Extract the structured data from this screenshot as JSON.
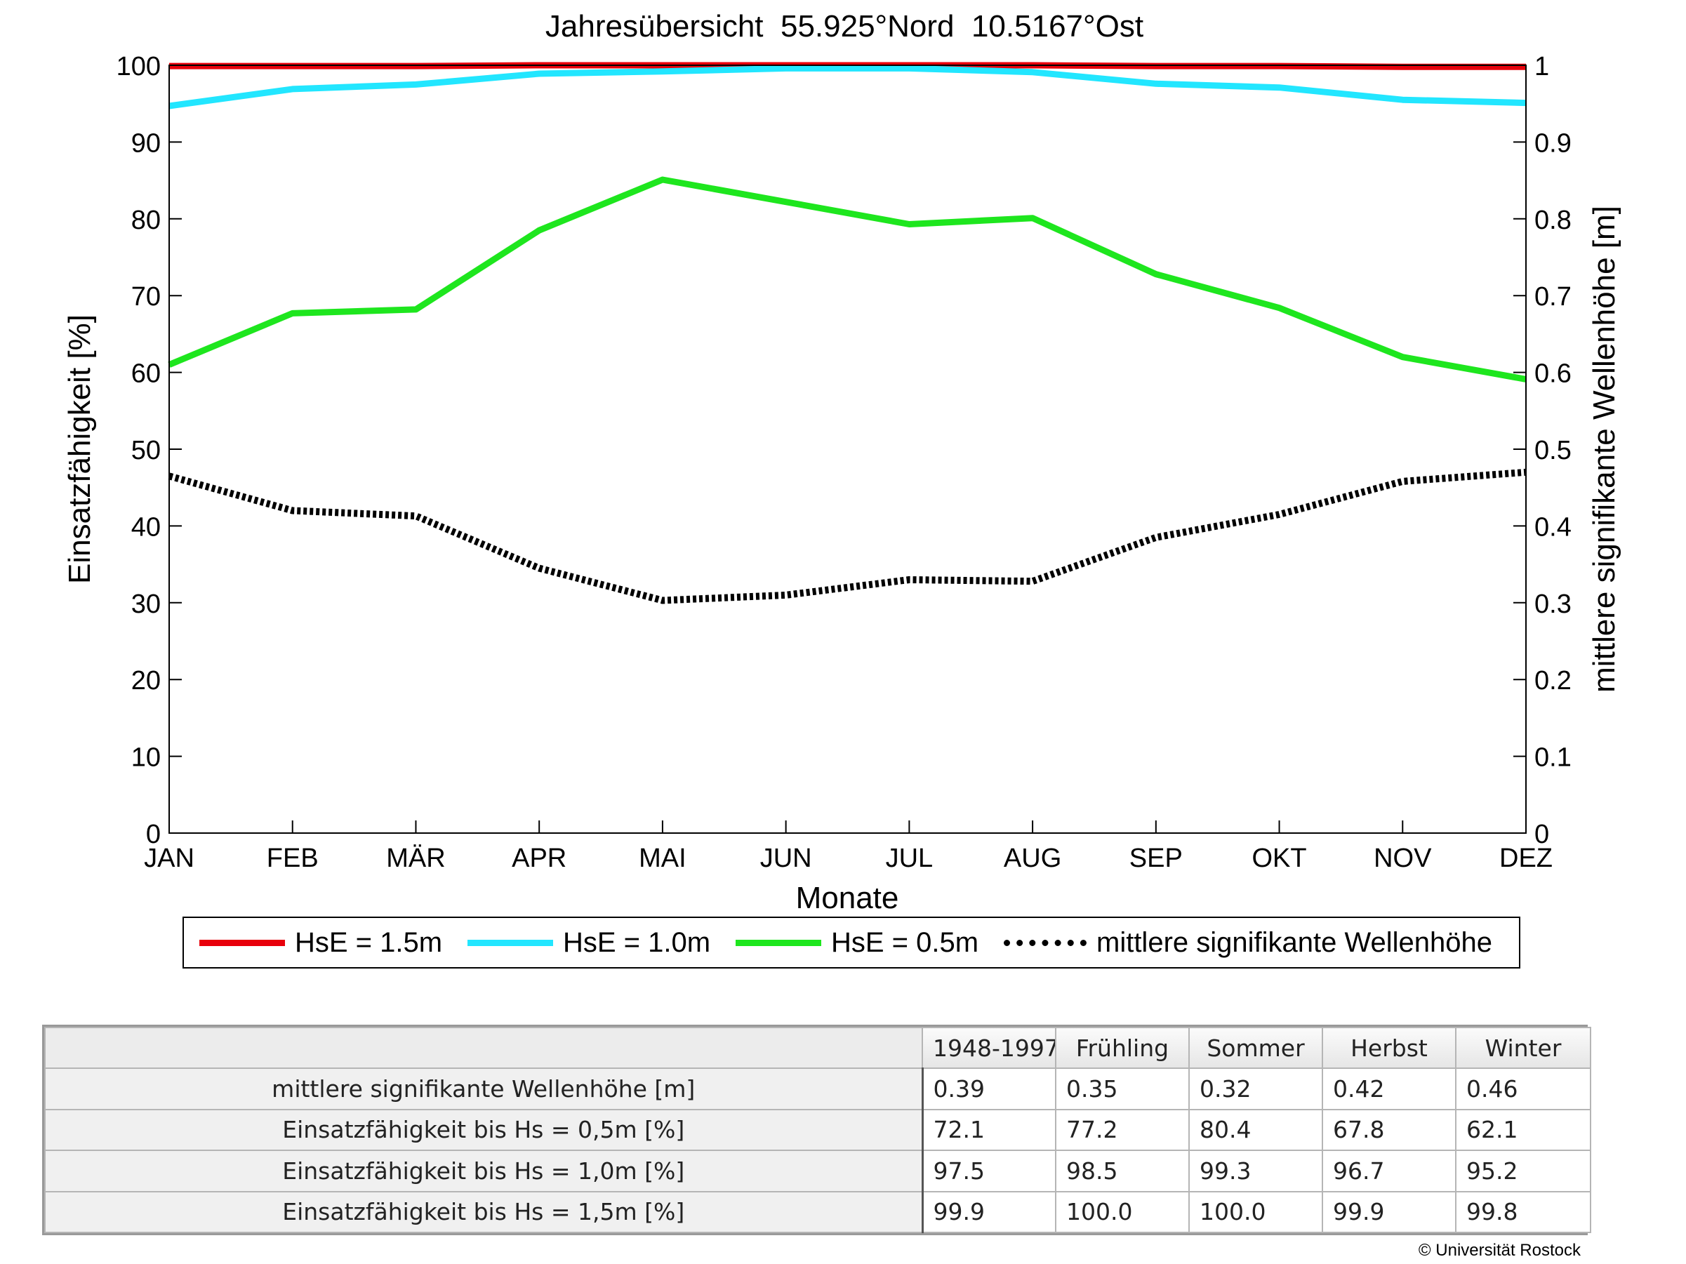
{
  "chart_data": {
    "type": "line",
    "title": "Jahresübersicht  55.925°Nord  10.5167°Ost",
    "xlabel": "Monate",
    "ylabel": "Einsatzfähigkeit [%]",
    "ylabel_right": "mittlere signifikante Wellenhöhe [m]",
    "categories": [
      "JAN",
      "FEB",
      "MÄR",
      "APR",
      "MAI",
      "JUN",
      "JUL",
      "AUG",
      "SEP",
      "OKT",
      "NOV",
      "DEZ"
    ],
    "ylim": [
      0,
      100
    ],
    "yticks": [
      "0",
      "10",
      "20",
      "30",
      "40",
      "50",
      "60",
      "70",
      "80",
      "90",
      "100"
    ],
    "ylim_right": [
      0,
      1
    ],
    "yticks_right": [
      "0",
      "0.1",
      "0.2",
      "0.3",
      "0.4",
      "0.5",
      "0.6",
      "0.7",
      "0.8",
      "0.9",
      "1"
    ],
    "grid": false,
    "legend_placement": "bottom",
    "series": [
      {
        "name": "HsE = 1.5m",
        "axis": "left",
        "color": "#e8000b",
        "style": "solid",
        "values": [
          99.9,
          99.9,
          99.9,
          100.0,
          100.0,
          100.0,
          100.0,
          100.0,
          99.9,
          99.9,
          99.8,
          99.8
        ]
      },
      {
        "name": "HsE = 1.0m",
        "axis": "left",
        "color": "#22e6ff",
        "style": "solid",
        "values": [
          94.7,
          96.9,
          97.5,
          98.9,
          99.2,
          99.6,
          99.6,
          99.1,
          97.6,
          97.1,
          95.5,
          95.1
        ]
      },
      {
        "name": "HsE = 0.5m",
        "axis": "left",
        "color": "#1ee61e",
        "style": "solid",
        "values": [
          61.0,
          67.7,
          68.2,
          78.5,
          85.1,
          82.2,
          79.3,
          80.1,
          72.8,
          68.4,
          62.0,
          59.1
        ]
      },
      {
        "name": "mittlere signifikante Wellenhöhe",
        "axis": "right",
        "color": "#000000",
        "style": "dotted",
        "values": [
          0.465,
          0.42,
          0.413,
          0.345,
          0.303,
          0.31,
          0.33,
          0.328,
          0.385,
          0.415,
          0.458,
          0.47
        ]
      }
    ]
  },
  "table": {
    "columns": [
      "1948-1997",
      "Frühling",
      "Sommer",
      "Herbst",
      "Winter"
    ],
    "rows": [
      {
        "label": "mittlere signifikante Wellenhöhe [m]",
        "values": [
          "0.39",
          "0.35",
          "0.32",
          "0.42",
          "0.46"
        ]
      },
      {
        "label": "Einsatzfähigkeit bis Hs = 0,5m [%]",
        "values": [
          "72.1",
          "77.2",
          "80.4",
          "67.8",
          "62.1"
        ]
      },
      {
        "label": "Einsatzfähigkeit bis Hs = 1,0m [%]",
        "values": [
          "97.5",
          "98.5",
          "99.3",
          "96.7",
          "95.2"
        ]
      },
      {
        "label": "Einsatzfähigkeit bis Hs = 1,5m [%]",
        "values": [
          "99.9",
          "100.0",
          "100.0",
          "99.9",
          "99.8"
        ]
      }
    ]
  },
  "copyright": "© Universität Rostock"
}
